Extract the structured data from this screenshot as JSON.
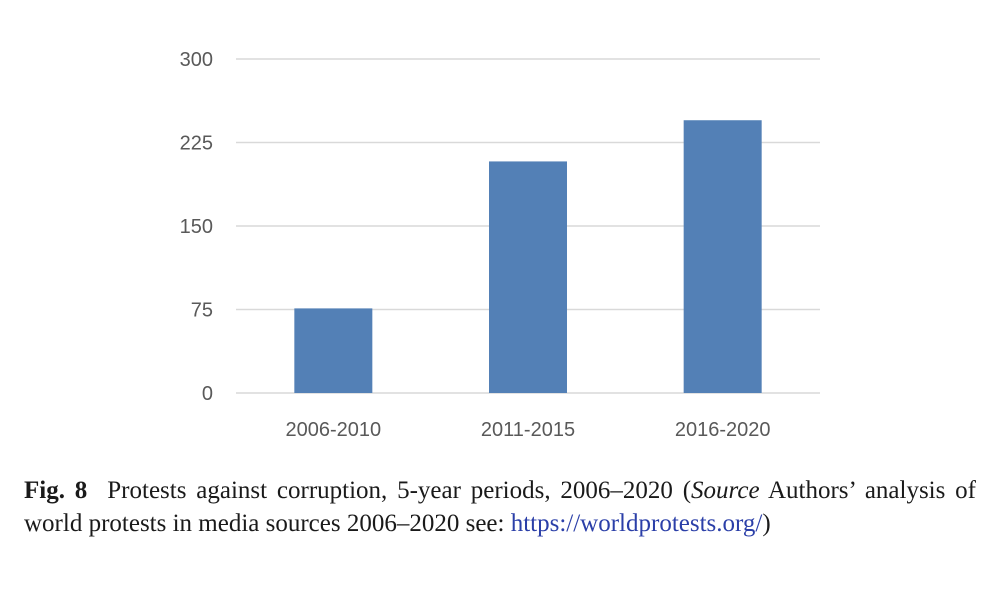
{
  "chart_data": {
    "type": "bar",
    "categories": [
      "2006-2010",
      "2011-2015",
      "2016-2020"
    ],
    "values": [
      76,
      208,
      245
    ],
    "ylim": [
      0,
      300
    ],
    "yticks": [
      0,
      75,
      150,
      225,
      300
    ],
    "grid": true,
    "legend": "none",
    "bar_color": "#5380b6",
    "grid_color": "#d9d9d9"
  },
  "caption": {
    "fig_label": "Fig. 8",
    "text_1": "Protests against corruption, 5-year periods, 2006–2020 (",
    "source_italic": "Source",
    "text_2": " Authors’ analysis of world protests in media sources 2006–2020 see: ",
    "link": "https://worldprotests.org/",
    "text_3": ")"
  }
}
